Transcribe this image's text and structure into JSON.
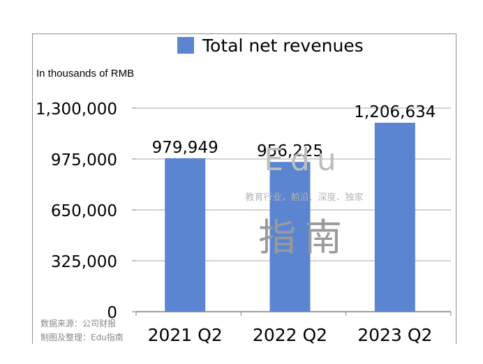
{
  "chart_data": {
    "type": "bar",
    "categories": [
      "2021 Q2",
      "2022 Q2",
      "2023 Q2"
    ],
    "series": [
      {
        "name": "Total net revenues",
        "values": [
          979949,
          956225,
          1206634
        ]
      }
    ],
    "data_labels": [
      "979,949",
      "956,225",
      "1,206,634"
    ],
    "y_ticks": [
      0,
      325000,
      650000,
      975000,
      1300000
    ],
    "y_tick_labels": [
      "0",
      "325,000",
      "650,000",
      "975,000",
      "1,300,000"
    ],
    "ylim": [
      0,
      1300000
    ],
    "ylabel": "In thousands of RMB",
    "grid": true,
    "legend_position": "top",
    "bar_color": "#5b85d0"
  },
  "legend": {
    "label": "Total net revenues"
  },
  "unit_label": "In thousands of RMB",
  "source": {
    "line1": "数据来源：公司财报",
    "line2": "制图及整理：Edu指南"
  },
  "watermark": {
    "big": "Edu",
    "tagline": "教育行业，前沿、深度、独家",
    "cn": "指南"
  }
}
